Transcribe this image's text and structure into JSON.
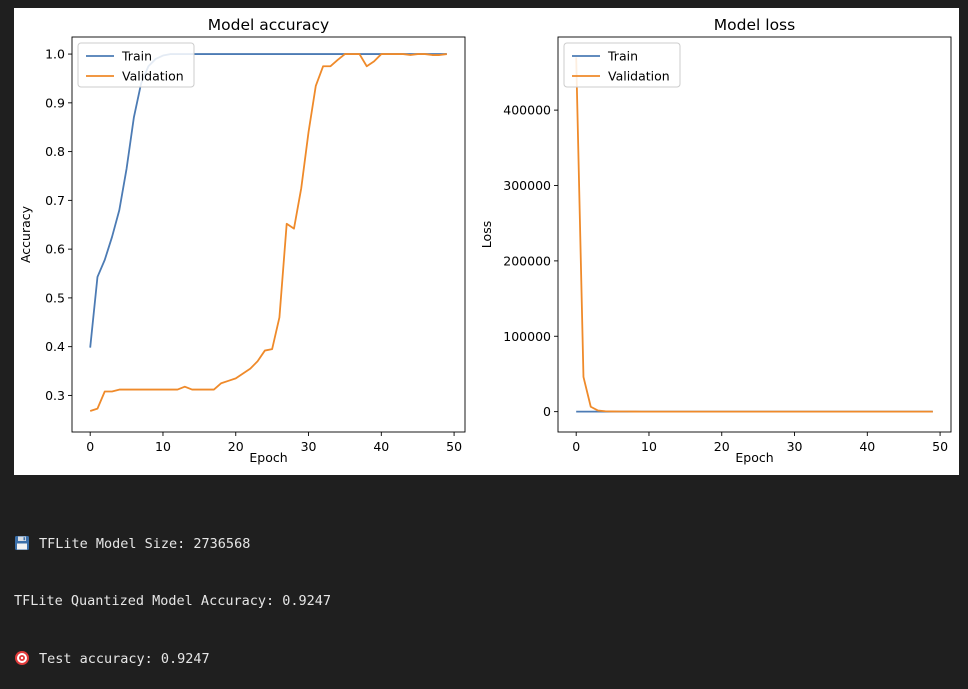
{
  "colors": {
    "train": "#4c7bb4",
    "validation": "#ef8a2a",
    "output_bg": "#1f1f1f",
    "output_text": "#e6e6e6"
  },
  "chart_data": [
    {
      "type": "line",
      "title": "Model accuracy",
      "xlabel": "Epoch",
      "ylabel": "Accuracy",
      "xlim": [
        -2.5,
        51.5
      ],
      "ylim": [
        0.225,
        1.035
      ],
      "xticks": [
        0,
        10,
        20,
        30,
        40,
        50
      ],
      "yticks": [
        0.3,
        0.4,
        0.5,
        0.6,
        0.7,
        0.8,
        0.9,
        1.0
      ],
      "ytick_labels": [
        "0.3",
        "0.4",
        "0.5",
        "0.6",
        "0.7",
        "0.8",
        "0.9",
        "1.0"
      ],
      "grid": false,
      "legend": "top-left",
      "series": [
        {
          "name": "Train",
          "color": "train",
          "x": [
            0,
            1,
            2,
            3,
            4,
            5,
            6,
            7,
            8,
            9,
            10,
            11,
            12,
            13,
            14,
            15,
            16,
            17,
            18,
            19,
            20,
            21,
            22,
            23,
            24,
            25,
            26,
            27,
            28,
            29,
            30,
            31,
            32,
            33,
            34,
            35,
            36,
            37,
            38,
            39,
            40,
            41,
            42,
            43,
            44,
            45,
            46,
            47,
            48,
            49
          ],
          "y": [
            0.398,
            0.543,
            0.578,
            0.625,
            0.68,
            0.765,
            0.87,
            0.94,
            0.975,
            0.99,
            0.997,
            1.0,
            1.0,
            1.0,
            1.0,
            1.0,
            1.0,
            1.0,
            1.0,
            1.0,
            1.0,
            1.0,
            1.0,
            1.0,
            1.0,
            1.0,
            1.0,
            1.0,
            1.0,
            1.0,
            1.0,
            1.0,
            1.0,
            1.0,
            1.0,
            1.0,
            1.0,
            1.0,
            1.0,
            1.0,
            1.0,
            1.0,
            1.0,
            1.0,
            1.0,
            1.0,
            1.0,
            1.0,
            1.0,
            1.0
          ]
        },
        {
          "name": "Validation",
          "color": "validation",
          "x": [
            0,
            1,
            2,
            3,
            4,
            5,
            6,
            7,
            8,
            9,
            10,
            11,
            12,
            13,
            14,
            15,
            16,
            17,
            18,
            19,
            20,
            21,
            22,
            23,
            24,
            25,
            26,
            27,
            28,
            29,
            30,
            31,
            32,
            33,
            34,
            35,
            36,
            37,
            38,
            39,
            40,
            41,
            42,
            43,
            44,
            45,
            46,
            47,
            48,
            49
          ],
          "y": [
            0.268,
            0.273,
            0.308,
            0.308,
            0.312,
            0.312,
            0.312,
            0.312,
            0.312,
            0.312,
            0.312,
            0.312,
            0.312,
            0.318,
            0.312,
            0.312,
            0.312,
            0.312,
            0.325,
            0.33,
            0.335,
            0.345,
            0.355,
            0.37,
            0.392,
            0.395,
            0.46,
            0.652,
            0.642,
            0.725,
            0.84,
            0.935,
            0.975,
            0.975,
            0.988,
            1.0,
            1.0,
            1.0,
            0.975,
            0.985,
            1.0,
            1.0,
            1.0,
            1.0,
            0.998,
            1.0,
            1.0,
            0.998,
            0.998,
            1.0
          ]
        }
      ]
    },
    {
      "type": "line",
      "title": "Model loss",
      "xlabel": "Epoch",
      "ylabel": "Loss",
      "xlim": [
        -2.5,
        51.5
      ],
      "ylim": [
        -27000,
        497000
      ],
      "xticks": [
        0,
        10,
        20,
        30,
        40,
        50
      ],
      "yticks": [
        0,
        100000,
        200000,
        300000,
        400000
      ],
      "ytick_labels": [
        "0",
        "100000",
        "200000",
        "300000",
        "400000"
      ],
      "grid": false,
      "legend": "top-left",
      "series": [
        {
          "name": "Train",
          "color": "train",
          "x": [
            0,
            1,
            2,
            3,
            4,
            5,
            6,
            7,
            8,
            9,
            10,
            11,
            12,
            13,
            14,
            15,
            16,
            17,
            18,
            19,
            20,
            21,
            22,
            23,
            24,
            25,
            26,
            27,
            28,
            29,
            30,
            31,
            32,
            33,
            34,
            35,
            36,
            37,
            38,
            39,
            40,
            41,
            42,
            43,
            44,
            45,
            46,
            47,
            48,
            49
          ],
          "y": [
            2,
            1.5,
            1.2,
            1,
            0.9,
            0.8,
            0.7,
            0.6,
            0.5,
            0.4,
            0.3,
            0.3,
            0.2,
            0.2,
            0.2,
            0.1,
            0.1,
            0.1,
            0.1,
            0.1,
            0.1,
            0.1,
            0.1,
            0.1,
            0.1,
            0.1,
            0.1,
            0.1,
            0.1,
            0.1,
            0.1,
            0.1,
            0.1,
            0.1,
            0.1,
            0.1,
            0.1,
            0.1,
            0.1,
            0.1,
            0.1,
            0.1,
            0.1,
            0.1,
            0.1,
            0.1,
            0.1,
            0.1,
            0.1,
            0.1
          ]
        },
        {
          "name": "Validation",
          "color": "validation",
          "x": [
            0,
            1,
            2,
            3,
            4,
            5,
            6,
            7,
            8,
            9,
            10,
            11,
            12,
            13,
            14,
            15,
            16,
            17,
            18,
            19,
            20,
            21,
            22,
            23,
            24,
            25,
            26,
            27,
            28,
            29,
            30,
            31,
            32,
            33,
            34,
            35,
            36,
            37,
            38,
            39,
            40,
            41,
            42,
            43,
            44,
            45,
            46,
            47,
            48,
            49
          ],
          "y": [
            470000,
            46000,
            6500,
            1500,
            500,
            300,
            200,
            150,
            100,
            80,
            60,
            50,
            40,
            30,
            30,
            20,
            20,
            20,
            20,
            15,
            15,
            15,
            10,
            10,
            10,
            10,
            10,
            10,
            10,
            10,
            8,
            8,
            8,
            8,
            8,
            6,
            6,
            6,
            6,
            6,
            5,
            5,
            5,
            5,
            5,
            4,
            4,
            4,
            4,
            4
          ]
        }
      ]
    }
  ],
  "console": {
    "lines": [
      {
        "icon": "floppy-disk-icon",
        "text": "TFLite Model Size: 2736568"
      },
      {
        "icon": null,
        "text": "TFLite Quantized Model Accuracy: 0.9247"
      },
      {
        "icon": "direct-hit-icon",
        "text": "Test accuracy: 0.9247"
      }
    ]
  }
}
